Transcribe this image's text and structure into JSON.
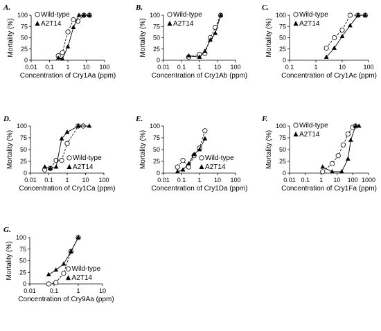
{
  "chart_data": [
    {
      "type": "line",
      "panel": "A.",
      "x_scale": "log",
      "xlim": [
        0.01,
        100
      ],
      "ylim": [
        0,
        100
      ],
      "x_ticks": [
        "0.01",
        "0.1",
        "1",
        "10",
        "100"
      ],
      "y_ticks": [
        "0",
        "25",
        "50",
        "75",
        "100"
      ],
      "xlabel": "Concentration of Cry1Aa (ppm)",
      "ylabel": "Mortality (%)",
      "legend_position": "top-left",
      "series": [
        {
          "name": "Wild-type",
          "marker": "open-circle",
          "line": "dashed",
          "x": [
            0.3,
            0.5,
            1.0,
            2.0,
            3.5,
            7.5,
            15
          ],
          "y": [
            10,
            17,
            63,
            90,
            87,
            100,
            100
          ]
        },
        {
          "name": "A2T14",
          "marker": "filled-triangle",
          "line": "solid",
          "x": [
            0.3,
            0.5,
            1.0,
            2.0,
            4.0,
            7.5,
            15
          ],
          "y": [
            5,
            3,
            30,
            73,
            100,
            100,
            100
          ]
        }
      ]
    },
    {
      "type": "line",
      "panel": "B.",
      "x_scale": "log",
      "xlim": [
        0.01,
        100
      ],
      "ylim": [
        0,
        100
      ],
      "x_ticks": [
        "0.01",
        "0.1",
        "1",
        "10",
        "100"
      ],
      "y_ticks": [
        "0",
        "25",
        "50",
        "75",
        "100"
      ],
      "xlabel": "Concentration of Cry1Ab (ppm)",
      "ylabel": "Mortality (%)",
      "legend_position": "top-left",
      "series": [
        {
          "name": "Wild-type",
          "marker": "open-circle",
          "line": "dashed",
          "x": [
            0.25,
            1.0,
            2.0,
            4.0,
            7.5,
            15
          ],
          "y": [
            7,
            13,
            15,
            50,
            73,
            100
          ]
        },
        {
          "name": "A2T14",
          "marker": "filled-triangle",
          "line": "solid",
          "x": [
            0.25,
            1.0,
            2.0,
            4.0,
            7.5,
            15
          ],
          "y": [
            10,
            7,
            20,
            45,
            60,
            100
          ]
        }
      ]
    },
    {
      "type": "line",
      "panel": "C.",
      "x_scale": "log",
      "xlim": [
        0.1,
        100
      ],
      "ylim": [
        0,
        100
      ],
      "x_ticks": [
        "0.1",
        "1",
        "10",
        "100"
      ],
      "y_ticks": [
        "0",
        "25",
        "50",
        "75",
        "100"
      ],
      "xlabel": "Concentration of Cry1Ac (ppm)",
      "ylabel": "Mortality (%)",
      "legend_position": "top-left",
      "series": [
        {
          "name": "Wild-type",
          "marker": "open-circle",
          "line": "dashed",
          "x": [
            2.5,
            5.0,
            10,
            20,
            40,
            75
          ],
          "y": [
            27,
            50,
            67,
            100,
            100,
            100
          ]
        },
        {
          "name": "A2T14",
          "marker": "filled-triangle",
          "line": "solid",
          "x": [
            2.5,
            5.0,
            10,
            20,
            40,
            75
          ],
          "y": [
            7,
            27,
            53,
            77,
            100,
            100
          ]
        }
      ]
    },
    {
      "type": "line",
      "panel": "D.",
      "x_scale": "log",
      "xlim": [
        0.01,
        100
      ],
      "ylim": [
        0,
        100
      ],
      "x_ticks": [
        "0.01",
        "0.1",
        "1",
        "10",
        "100"
      ],
      "y_ticks": [
        "0",
        "25",
        "50",
        "75",
        "100"
      ],
      "xlabel": "Concentration of Cry1Ca (ppm)",
      "ylabel": "Mortality (%)",
      "legend_position": "lower-right",
      "series": [
        {
          "name": "Wild-type",
          "marker": "open-circle",
          "line": "dashed",
          "x": [
            0.06,
            0.12,
            0.25,
            0.5,
            1.0,
            4.0,
            7.5
          ],
          "y": [
            7,
            10,
            27,
            27,
            63,
            100,
            100
          ]
        },
        {
          "name": "A2T14",
          "marker": "filled-triangle",
          "line": "solid",
          "x": [
            0.06,
            0.12,
            0.25,
            0.5,
            1.0,
            4.0,
            16
          ],
          "y": [
            13,
            10,
            13,
            73,
            87,
            100,
            100
          ]
        }
      ]
    },
    {
      "type": "line",
      "panel": "E.",
      "x_scale": "log",
      "xlim": [
        0.01,
        100
      ],
      "ylim": [
        0,
        100
      ],
      "x_ticks": [
        "0.01",
        "0.1",
        "1",
        "10",
        "100"
      ],
      "y_ticks": [
        "0",
        "25",
        "50",
        "75",
        "100"
      ],
      "xlabel": "Concentration of Cry1Da (ppm)",
      "ylabel": "Mortality (%)",
      "legend_position": "lower-right",
      "series": [
        {
          "name": "Wild-type",
          "marker": "open-circle",
          "line": "dashed",
          "x": [
            0.06,
            0.12,
            0.25,
            0.5,
            1.0,
            2.0
          ],
          "y": [
            13,
            27,
            13,
            37,
            53,
            90
          ]
        },
        {
          "name": "A2T14",
          "marker": "filled-triangle",
          "line": "solid",
          "x": [
            0.06,
            0.12,
            0.25,
            0.5,
            1.0,
            2.0
          ],
          "y": [
            3,
            7,
            20,
            40,
            50,
            73
          ]
        }
      ]
    },
    {
      "type": "line",
      "panel": "F.",
      "x_scale": "log",
      "xlim": [
        0.01,
        1000
      ],
      "ylim": [
        0,
        100
      ],
      "x_ticks": [
        "0.01",
        "0.1",
        "1",
        "10",
        "100",
        "1000"
      ],
      "y_ticks": [
        "0",
        "25",
        "50",
        "75",
        "100"
      ],
      "xlabel": "Concentration of Cry1Fa (ppm)",
      "ylabel": "Mortality (%)",
      "legend_position": "top-left",
      "series": [
        {
          "name": "Wild-type",
          "marker": "open-circle",
          "line": "dashed",
          "x": [
            1.25,
            5,
            12,
            25,
            50,
            100,
            150
          ],
          "y": [
            3,
            20,
            37,
            60,
            83,
            97,
            100
          ]
        },
        {
          "name": "A2T14",
          "marker": "filled-triangle",
          "line": "solid",
          "x": [
            1.25,
            5,
            20,
            50,
            75,
            150,
            250
          ],
          "y": [
            13,
            3,
            3,
            30,
            70,
            100,
            100
          ]
        }
      ]
    },
    {
      "type": "line",
      "panel": "G.",
      "x_scale": "log",
      "xlim": [
        0.01,
        10
      ],
      "ylim": [
        0,
        100
      ],
      "x_ticks": [
        "0.01",
        "0.1",
        "1",
        "10"
      ],
      "y_ticks": [
        "0",
        "25",
        "50",
        "75",
        "100"
      ],
      "xlabel": "Concentration of Cry9Aa (ppm)",
      "ylabel": "Mortality (%)",
      "legend_position": "lower-right",
      "series": [
        {
          "name": "Wild-type",
          "marker": "open-circle",
          "line": "dashed",
          "x": [
            0.06,
            0.12,
            0.25,
            0.5,
            1.0
          ],
          "y": [
            0,
            3,
            23,
            70,
            100
          ]
        },
        {
          "name": "A2T14",
          "marker": "filled-triangle",
          "line": "solid",
          "x": [
            0.06,
            0.12,
            0.25,
            0.5,
            1.0
          ],
          "y": [
            20,
            30,
            43,
            70,
            100
          ]
        }
      ]
    }
  ]
}
